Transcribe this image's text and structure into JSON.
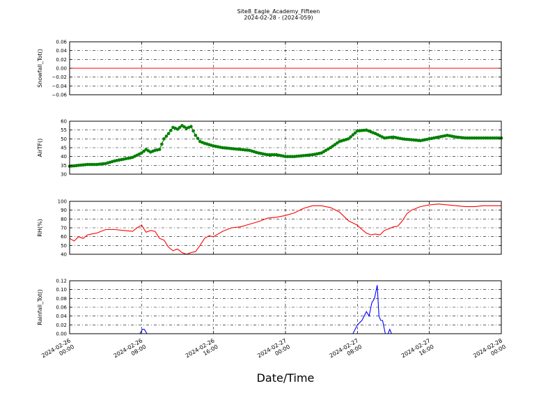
{
  "figure": {
    "title_line1": "Site8_Eagle_Academy_Fifteen",
    "title_line2": "2024-02-28 - (2024-059)",
    "xlabel": "Date/Time",
    "x_tick_labels": [
      [
        "2024-02-26",
        "00:00"
      ],
      [
        "2024-02-26",
        "08:00"
      ],
      [
        "2024-02-26",
        "16:00"
      ],
      [
        "2024-02-27",
        "00:00"
      ],
      [
        "2024-02-27",
        "08:00"
      ],
      [
        "2024-02-27",
        "16:00"
      ],
      [
        "2024-02-28",
        "00:00"
      ]
    ]
  },
  "chart_data": [
    {
      "type": "line",
      "ylabel": "Snowfall_Tot()",
      "ylim": [
        -0.06,
        0.06
      ],
      "yticks": [
        -0.06,
        -0.04,
        -0.02,
        0.0,
        0.02,
        0.04,
        0.06
      ],
      "ytick_labels": [
        "−0.06",
        "−0.04",
        "−0.02",
        "0.00",
        "0.02",
        "0.04",
        "0.06"
      ],
      "xlim": [
        0,
        48
      ],
      "grid": true,
      "marker": false,
      "color": "#ff0000",
      "series": [
        {
          "x": [
            0,
            48
          ],
          "values": [
            0,
            0
          ]
        }
      ]
    },
    {
      "type": "line",
      "ylabel": "AirTF()",
      "ylim": [
        30,
        60
      ],
      "yticks": [
        30,
        35,
        40,
        45,
        50,
        55,
        60
      ],
      "ytick_labels": [
        "30",
        "35",
        "40",
        "45",
        "50",
        "55",
        "60"
      ],
      "xlim": [
        0,
        48
      ],
      "grid": true,
      "marker": true,
      "color": "#008000",
      "series": [
        {
          "x": [
            0,
            1,
            2,
            3,
            4,
            5,
            6,
            7,
            8,
            8.5,
            9,
            9.5,
            10,
            10.5,
            11,
            11.5,
            12,
            12.5,
            13,
            13.5,
            14,
            14.5,
            15,
            16,
            17,
            18,
            19,
            20,
            21,
            22,
            23,
            24,
            25,
            26,
            27,
            28,
            29,
            30,
            31,
            32,
            33,
            34,
            35,
            36,
            37,
            38,
            39,
            40,
            41,
            42,
            43,
            44,
            45,
            46,
            47,
            48
          ],
          "values": [
            34.5,
            35,
            35.5,
            35.5,
            36,
            37.5,
            38.5,
            39.5,
            42,
            44,
            42.5,
            43.5,
            44,
            50,
            53,
            56.5,
            55.5,
            57.5,
            56,
            57,
            52,
            48.5,
            47.5,
            46,
            45,
            44.5,
            44,
            43.5,
            42,
            41,
            41,
            40,
            40,
            40.5,
            41,
            42,
            45,
            48.5,
            50,
            54.5,
            55,
            53,
            50.5,
            51,
            50,
            49.5,
            49,
            50,
            51,
            52,
            51,
            50.5,
            50.5,
            50.5,
            50.5,
            50.5
          ]
        }
      ]
    },
    {
      "type": "line",
      "ylabel": "RH(%)",
      "ylim": [
        40,
        100
      ],
      "yticks": [
        40,
        50,
        60,
        70,
        80,
        90,
        100
      ],
      "ytick_labels": [
        "40",
        "50",
        "60",
        "70",
        "80",
        "90",
        "100"
      ],
      "xlim": [
        0,
        48
      ],
      "grid": true,
      "marker": false,
      "color": "#ff0000",
      "series": [
        {
          "x": [
            0,
            0.5,
            1,
            1.5,
            2,
            3,
            4,
            5,
            6,
            7,
            7.5,
            8,
            8.5,
            9,
            9.5,
            10,
            10.5,
            11,
            11.5,
            12,
            12.5,
            13,
            13.5,
            14,
            14.5,
            15,
            15.5,
            16,
            17,
            18,
            19,
            20,
            21,
            22,
            23,
            24,
            25,
            26,
            27,
            28,
            29,
            30,
            31,
            32,
            32.5,
            33,
            33.5,
            34,
            34.5,
            35,
            36,
            36.5,
            37,
            37.5,
            38,
            39,
            40,
            41,
            42,
            43,
            44,
            45,
            46,
            47,
            48
          ],
          "values": [
            58,
            55,
            60,
            58,
            62,
            64,
            68,
            68,
            67,
            66,
            70,
            73,
            65,
            67,
            66,
            58,
            56,
            48,
            44,
            46,
            42,
            40,
            42,
            43,
            50,
            58,
            61,
            60,
            66,
            70,
            71,
            74,
            77,
            81,
            82,
            84,
            87,
            92,
            95,
            95,
            93,
            88,
            78,
            73,
            68,
            64,
            62,
            63,
            62,
            67,
            71,
            72,
            78,
            86,
            90,
            94,
            96,
            97,
            96,
            95,
            94,
            94,
            95,
            95,
            95
          ]
        }
      ]
    },
    {
      "type": "line",
      "ylabel": "Rainfall_Tot()",
      "ylim": [
        0,
        0.12
      ],
      "yticks": [
        0.0,
        0.02,
        0.04,
        0.06,
        0.08,
        0.1,
        0.12
      ],
      "ytick_labels": [
        "0.00",
        "0.02",
        "0.04",
        "0.06",
        "0.08",
        "0.10",
        "0.12"
      ],
      "xlim": [
        0,
        48
      ],
      "grid": true,
      "marker": false,
      "color": "#0000ff",
      "series": [
        {
          "x": [
            0,
            7.8,
            8.1,
            8.3,
            8.6,
            8.8,
            9,
            31.5,
            32.0,
            32.5,
            33.0,
            33.3,
            33.6,
            33.9,
            34.2,
            34.4,
            34.6,
            34.8,
            35.1,
            35.4,
            35.6,
            35.8,
            36.0,
            36.2,
            36.4,
            48
          ],
          "values": [
            0,
            0,
            0.01,
            0.01,
            0,
            0,
            0,
            0,
            0.02,
            0.03,
            0.05,
            0.04,
            0.07,
            0.08,
            0.11,
            0.04,
            0.03,
            0.03,
            0,
            0,
            0.01,
            0,
            0,
            0,
            0,
            0
          ]
        }
      ]
    }
  ]
}
